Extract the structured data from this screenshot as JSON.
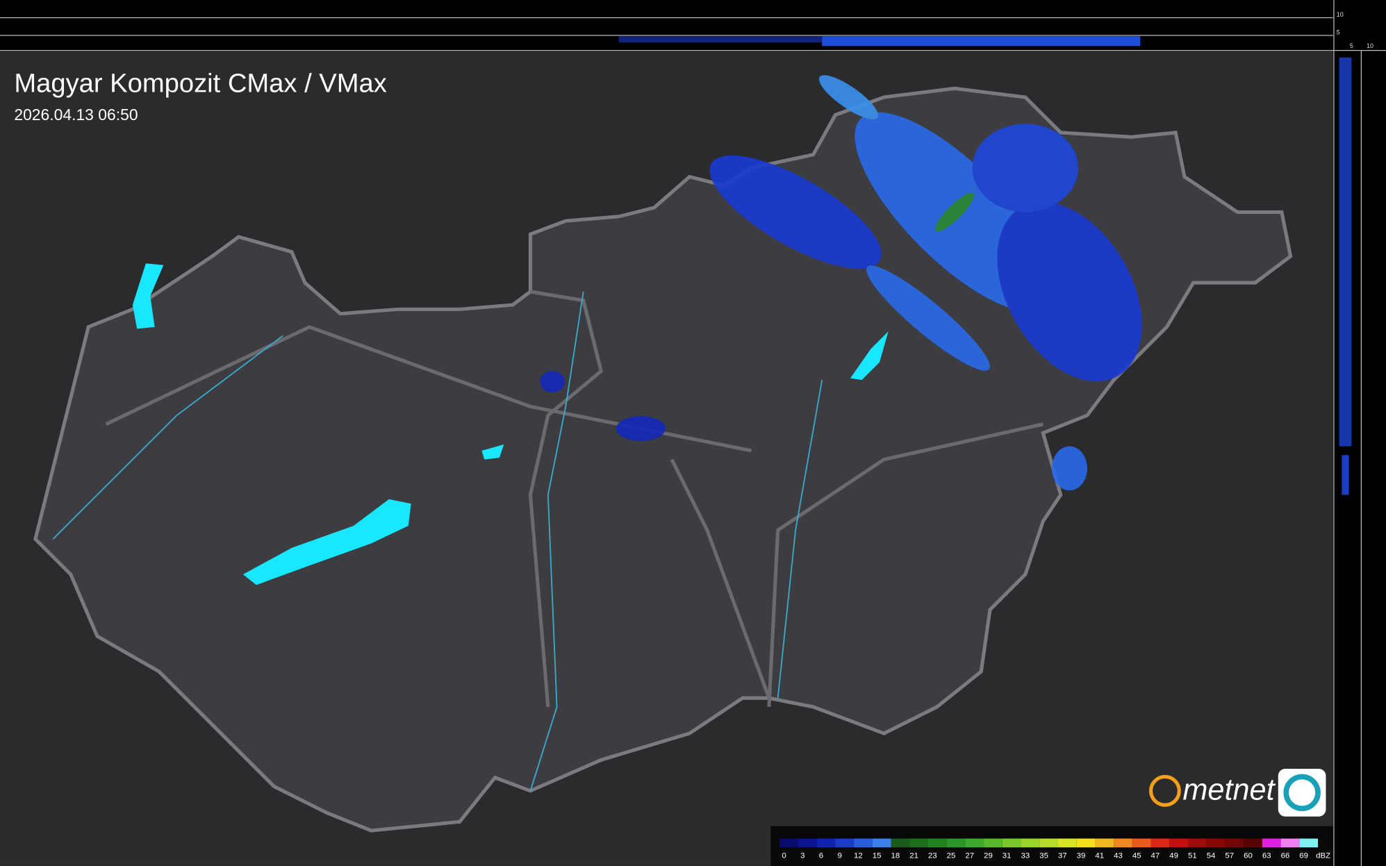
{
  "header": {
    "title": "Magyar Kompozit CMax / VMax",
    "timestamp": "2026.04.13 06:50"
  },
  "profile_axes": {
    "top": [
      "10",
      "5"
    ],
    "side": [
      "5",
      "10"
    ]
  },
  "logo": {
    "text": "metnet"
  },
  "legend": {
    "unit": "dBZ",
    "ticks": [
      0,
      3,
      6,
      9,
      12,
      15,
      18,
      21,
      23,
      25,
      27,
      29,
      31,
      33,
      35,
      37,
      39,
      41,
      43,
      45,
      47,
      49,
      51,
      54,
      57,
      60,
      63,
      66,
      69
    ],
    "colors": [
      "#0a0a6e",
      "#0c1490",
      "#1024b0",
      "#1a3cc8",
      "#2a5cdc",
      "#3a80e8",
      "#1c5a1c",
      "#1e6e1e",
      "#228222",
      "#2a962a",
      "#3aa82a",
      "#58b82a",
      "#78c82a",
      "#98d42a",
      "#b8dc2a",
      "#d8e42a",
      "#f0e020",
      "#f0b820",
      "#f08a20",
      "#e85a18",
      "#d82818",
      "#c01010",
      "#a00c0c",
      "#880808",
      "#700606",
      "#560404",
      "#e020e0",
      "#f080f0",
      "#80f0f0"
    ]
  }
}
